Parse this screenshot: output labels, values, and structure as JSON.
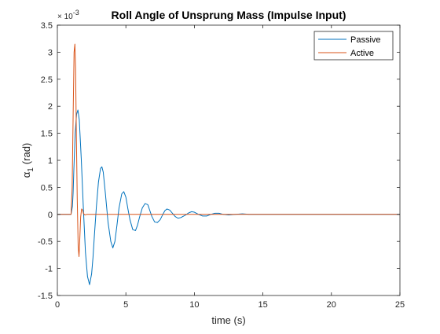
{
  "chart_data": {
    "type": "line",
    "title": "Roll Angle of Unsprung Mass (Impulse Input)",
    "xlabel": "time (s)",
    "ylabel_symbol": "α",
    "ylabel_subscript": "1",
    "ylabel_unit": "(rad)",
    "y_exponent_base": "× 10",
    "y_exponent_power": "-3",
    "xlim": [
      0,
      25
    ],
    "ylim": [
      -1.5,
      3.5
    ],
    "xticks": [
      0,
      5,
      10,
      15,
      20,
      25
    ],
    "xtick_labels": [
      "0",
      "5",
      "10",
      "15",
      "20",
      "25"
    ],
    "yticks": [
      -1.5,
      -1,
      -0.5,
      0,
      0.5,
      1,
      1.5,
      2,
      2.5,
      3,
      3.5
    ],
    "ytick_labels": [
      "-1.5",
      "-1",
      "-0.5",
      "0",
      "0.5",
      "1",
      "1.5",
      "2",
      "2.5",
      "3",
      "3.5"
    ],
    "grid": false,
    "legend_position": "top-right",
    "series": [
      {
        "name": "Passive",
        "color": "#0072BD",
        "x": [
          0,
          1.0,
          1.1,
          1.15,
          1.2,
          1.3,
          1.4,
          1.5,
          1.6,
          1.75,
          1.9,
          2.05,
          2.2,
          2.35,
          2.5,
          2.6,
          2.7,
          2.85,
          3.0,
          3.15,
          3.25,
          3.35,
          3.5,
          3.7,
          3.9,
          4.05,
          4.2,
          4.35,
          4.5,
          4.7,
          4.85,
          5.0,
          5.15,
          5.3,
          5.5,
          5.7,
          5.85,
          6.0,
          6.2,
          6.4,
          6.6,
          6.75,
          6.9,
          7.1,
          7.3,
          7.5,
          7.7,
          7.85,
          8.0,
          8.2,
          8.4,
          8.6,
          8.8,
          9.0,
          9.3,
          9.6,
          9.8,
          10.0,
          10.3,
          10.6,
          10.9,
          11.2,
          11.5,
          11.8,
          12.1,
          12.5,
          13.0,
          13.5,
          14.0,
          15.0,
          16.0,
          18.0,
          20.0,
          25.0
        ],
        "y": [
          0,
          0,
          0.15,
          0.4,
          0.8,
          1.5,
          1.85,
          1.93,
          1.75,
          1.0,
          0.1,
          -0.7,
          -1.15,
          -1.3,
          -1.1,
          -0.8,
          -0.4,
          0.15,
          0.6,
          0.85,
          0.88,
          0.78,
          0.4,
          -0.15,
          -0.5,
          -0.62,
          -0.5,
          -0.2,
          0.12,
          0.38,
          0.42,
          0.32,
          0.1,
          -0.1,
          -0.28,
          -0.3,
          -0.2,
          -0.05,
          0.12,
          0.2,
          0.18,
          0.07,
          -0.04,
          -0.14,
          -0.15,
          -0.1,
          0.0,
          0.07,
          0.1,
          0.08,
          0.02,
          -0.04,
          -0.07,
          -0.06,
          -0.02,
          0.03,
          0.05,
          0.04,
          0.0,
          -0.03,
          -0.03,
          0.0,
          0.02,
          0.02,
          0.0,
          -0.01,
          0.0,
          0.01,
          0.0,
          0.0,
          0.0,
          0.0,
          0.0,
          0.0
        ]
      },
      {
        "name": "Active",
        "color": "#D95319",
        "x": [
          0,
          1.0,
          1.08,
          1.15,
          1.22,
          1.28,
          1.33,
          1.38,
          1.45,
          1.52,
          1.58,
          1.63,
          1.7,
          1.77,
          1.84,
          1.9,
          2.0,
          2.15,
          25.0
        ],
        "y": [
          0,
          0,
          0.5,
          1.8,
          3.0,
          3.15,
          2.7,
          1.6,
          0.3,
          -0.6,
          -0.78,
          -0.5,
          -0.05,
          0.1,
          0.08,
          0.02,
          -0.01,
          0.0,
          0.0
        ]
      }
    ]
  }
}
